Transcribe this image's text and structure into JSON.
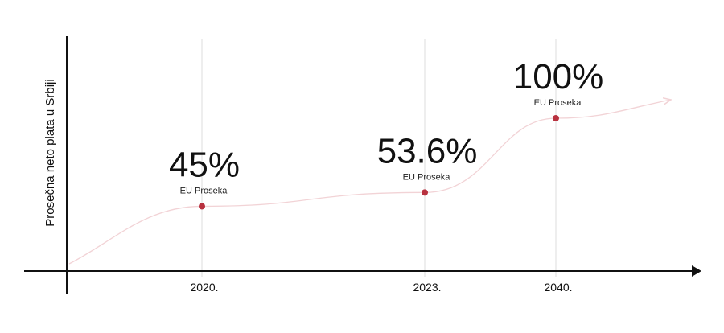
{
  "chart_data": {
    "type": "line",
    "title": "",
    "xlabel": "",
    "ylabel": "Prosečna neto plata u Srbiji",
    "categories": [
      "2020.",
      "2023.",
      "2040."
    ],
    "values": [
      45,
      53.6,
      100
    ],
    "value_labels": [
      "45%",
      "53.6%",
      "100%"
    ],
    "sublabels": [
      "EU Proseka",
      "EU Proseka",
      "EU Proseka"
    ],
    "ylim": [
      0,
      100
    ],
    "grid": false,
    "colors": {
      "curve": "#f2d3d6",
      "marker": "#b8313f",
      "axis": "#111111",
      "vline": "#dddddd"
    }
  }
}
